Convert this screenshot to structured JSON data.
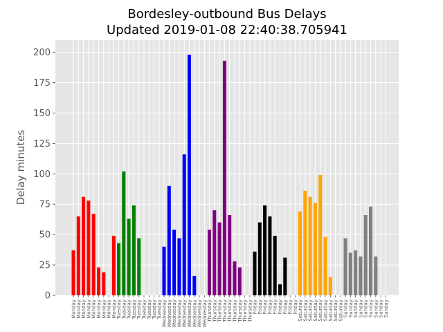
{
  "chart_data": {
    "type": "bar",
    "title_line1": "Bordesley-outbound Bus Delays",
    "title_line2": "Updated 2019-01-08 22:40:38.705941",
    "xlabel": "",
    "ylabel": "Delay minutes",
    "ylim": [
      0,
      210
    ],
    "yticks": [
      0,
      25,
      50,
      75,
      100,
      125,
      150,
      175,
      200
    ],
    "grid": true,
    "groups": [
      {
        "day": "Monday",
        "color": "#ff0000",
        "values": [
          37,
          65,
          81,
          78,
          67,
          23,
          19,
          0,
          49
        ]
      },
      {
        "day": "Tuesday",
        "color": "#008000",
        "values": [
          43,
          102,
          63,
          74,
          47,
          0,
          0,
          0,
          0
        ]
      },
      {
        "day": "Wednesday",
        "color": "#0000ff",
        "values": [
          40,
          90,
          54,
          47,
          116,
          198,
          16,
          0,
          0
        ]
      },
      {
        "day": "Thursday",
        "color": "#800080",
        "values": [
          54,
          70,
          60,
          193,
          66,
          28,
          23,
          0,
          0
        ]
      },
      {
        "day": "Friday",
        "color": "#000000",
        "values": [
          36,
          60,
          74,
          65,
          49,
          9,
          31,
          0,
          0
        ]
      },
      {
        "day": "Saturday",
        "color": "#ffa500",
        "values": [
          69,
          86,
          81,
          76,
          99,
          48,
          15,
          0,
          0
        ]
      },
      {
        "day": "Sunday",
        "color": "#808080",
        "values": [
          47,
          35,
          37,
          32,
          66,
          73,
          32,
          0,
          0
        ]
      }
    ]
  }
}
